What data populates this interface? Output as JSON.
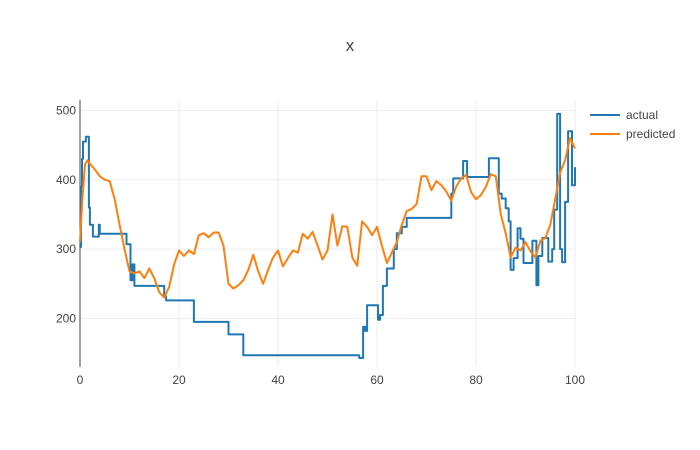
{
  "chart_data": {
    "type": "line",
    "title": "x",
    "xlabel": "",
    "ylabel": "",
    "xlim": [
      0,
      100
    ],
    "ylim": [
      130,
      515
    ],
    "xticks": [
      0,
      20,
      40,
      60,
      80,
      100
    ],
    "yticks": [
      200,
      300,
      400,
      500
    ],
    "grid": true,
    "legend_position": "top-right",
    "series": [
      {
        "name": "actual",
        "color": "#1f77b4",
        "line_shape": "step",
        "points": [
          [
            0,
            303
          ],
          [
            0.2,
            390
          ],
          [
            0.4,
            430
          ],
          [
            0.6,
            455
          ],
          [
            1.2,
            462
          ],
          [
            1.8,
            360
          ],
          [
            2.0,
            335
          ],
          [
            2.6,
            318
          ],
          [
            3.8,
            335
          ],
          [
            4.0,
            322
          ],
          [
            5.0,
            322
          ],
          [
            8.8,
            322
          ],
          [
            9.4,
            307
          ],
          [
            10.2,
            255
          ],
          [
            10.6,
            278
          ],
          [
            11.0,
            247
          ],
          [
            14.0,
            247
          ],
          [
            17.0,
            232
          ],
          [
            17.4,
            226
          ],
          [
            23.0,
            195
          ],
          [
            30.0,
            177
          ],
          [
            33.0,
            147
          ],
          [
            56.4,
            143
          ],
          [
            57.2,
            188
          ],
          [
            57.6,
            182
          ],
          [
            58.0,
            219
          ],
          [
            60.2,
            198
          ],
          [
            60.6,
            205
          ],
          [
            61.2,
            247
          ],
          [
            62.0,
            272
          ],
          [
            63.4,
            300
          ],
          [
            64.0,
            323
          ],
          [
            65.0,
            332
          ],
          [
            66.0,
            345
          ],
          [
            75.0,
            380
          ],
          [
            75.4,
            402
          ],
          [
            77.4,
            427
          ],
          [
            78.2,
            404
          ],
          [
            82.6,
            431
          ],
          [
            84.6,
            380
          ],
          [
            85.2,
            373
          ],
          [
            86.0,
            359
          ],
          [
            86.6,
            340
          ],
          [
            87.0,
            270
          ],
          [
            87.6,
            287
          ],
          [
            88.4,
            330
          ],
          [
            89.0,
            315
          ],
          [
            89.6,
            280
          ],
          [
            91.4,
            312
          ],
          [
            92.2,
            248
          ],
          [
            92.6,
            290
          ],
          [
            93.4,
            316
          ],
          [
            94.6,
            282
          ],
          [
            95.4,
            300
          ],
          [
            95.8,
            357
          ],
          [
            96.4,
            495
          ],
          [
            97.0,
            300
          ],
          [
            97.4,
            281
          ],
          [
            98.0,
            368
          ],
          [
            98.6,
            470
          ],
          [
            99.4,
            392
          ],
          [
            100,
            418
          ]
        ]
      },
      {
        "name": "predicted",
        "color": "#ff7f0e",
        "line_shape": "linear",
        "points": [
          [
            0,
            310
          ],
          [
            0.5,
            375
          ],
          [
            1,
            422
          ],
          [
            1.5,
            428
          ],
          [
            2,
            423
          ],
          [
            3,
            415
          ],
          [
            4,
            405
          ],
          [
            5,
            400
          ],
          [
            6,
            398
          ],
          [
            7,
            372
          ],
          [
            8,
            335
          ],
          [
            9,
            300
          ],
          [
            10,
            268
          ],
          [
            11,
            265
          ],
          [
            12,
            268
          ],
          [
            13,
            258
          ],
          [
            14,
            272
          ],
          [
            15,
            258
          ],
          [
            16,
            238
          ],
          [
            17,
            230
          ],
          [
            18,
            245
          ],
          [
            19,
            278
          ],
          [
            20,
            298
          ],
          [
            21,
            290
          ],
          [
            22,
            298
          ],
          [
            23,
            293
          ],
          [
            24,
            320
          ],
          [
            25,
            323
          ],
          [
            26,
            317
          ],
          [
            27,
            324
          ],
          [
            28,
            324
          ],
          [
            29,
            305
          ],
          [
            30,
            250
          ],
          [
            31,
            243
          ],
          [
            32,
            248
          ],
          [
            33,
            255
          ],
          [
            34,
            270
          ],
          [
            35,
            292
          ],
          [
            36,
            268
          ],
          [
            37,
            250
          ],
          [
            38,
            270
          ],
          [
            39,
            288
          ],
          [
            40,
            298
          ],
          [
            41,
            275
          ],
          [
            42,
            287
          ],
          [
            43,
            298
          ],
          [
            44,
            295
          ],
          [
            45,
            322
          ],
          [
            46,
            315
          ],
          [
            47,
            325
          ],
          [
            48,
            305
          ],
          [
            49,
            285
          ],
          [
            50,
            298
          ],
          [
            51,
            350
          ],
          [
            52,
            305
          ],
          [
            53,
            333
          ],
          [
            54,
            332
          ],
          [
            55,
            288
          ],
          [
            56,
            276
          ],
          [
            57,
            340
          ],
          [
            58,
            332
          ],
          [
            59,
            320
          ],
          [
            60,
            332
          ],
          [
            61,
            305
          ],
          [
            62,
            280
          ],
          [
            63,
            295
          ],
          [
            64,
            310
          ],
          [
            65,
            335
          ],
          [
            66,
            355
          ],
          [
            67,
            358
          ],
          [
            68,
            365
          ],
          [
            69,
            405
          ],
          [
            70,
            405
          ],
          [
            71,
            385
          ],
          [
            72,
            398
          ],
          [
            73,
            392
          ],
          [
            74,
            383
          ],
          [
            75,
            370
          ],
          [
            76,
            390
          ],
          [
            77,
            402
          ],
          [
            78,
            407
          ],
          [
            79,
            382
          ],
          [
            80,
            372
          ],
          [
            81,
            378
          ],
          [
            82,
            390
          ],
          [
            83,
            408
          ],
          [
            84,
            405
          ],
          [
            85,
            350
          ],
          [
            86,
            323
          ],
          [
            87,
            288
          ],
          [
            88,
            302
          ],
          [
            89,
            298
          ],
          [
            90,
            310
          ],
          [
            91,
            297
          ],
          [
            92,
            288
          ],
          [
            93,
            312
          ],
          [
            94,
            316
          ],
          [
            95,
            335
          ],
          [
            96,
            372
          ],
          [
            97,
            410
          ],
          [
            98,
            428
          ],
          [
            99,
            460
          ],
          [
            100,
            445
          ]
        ]
      }
    ]
  }
}
